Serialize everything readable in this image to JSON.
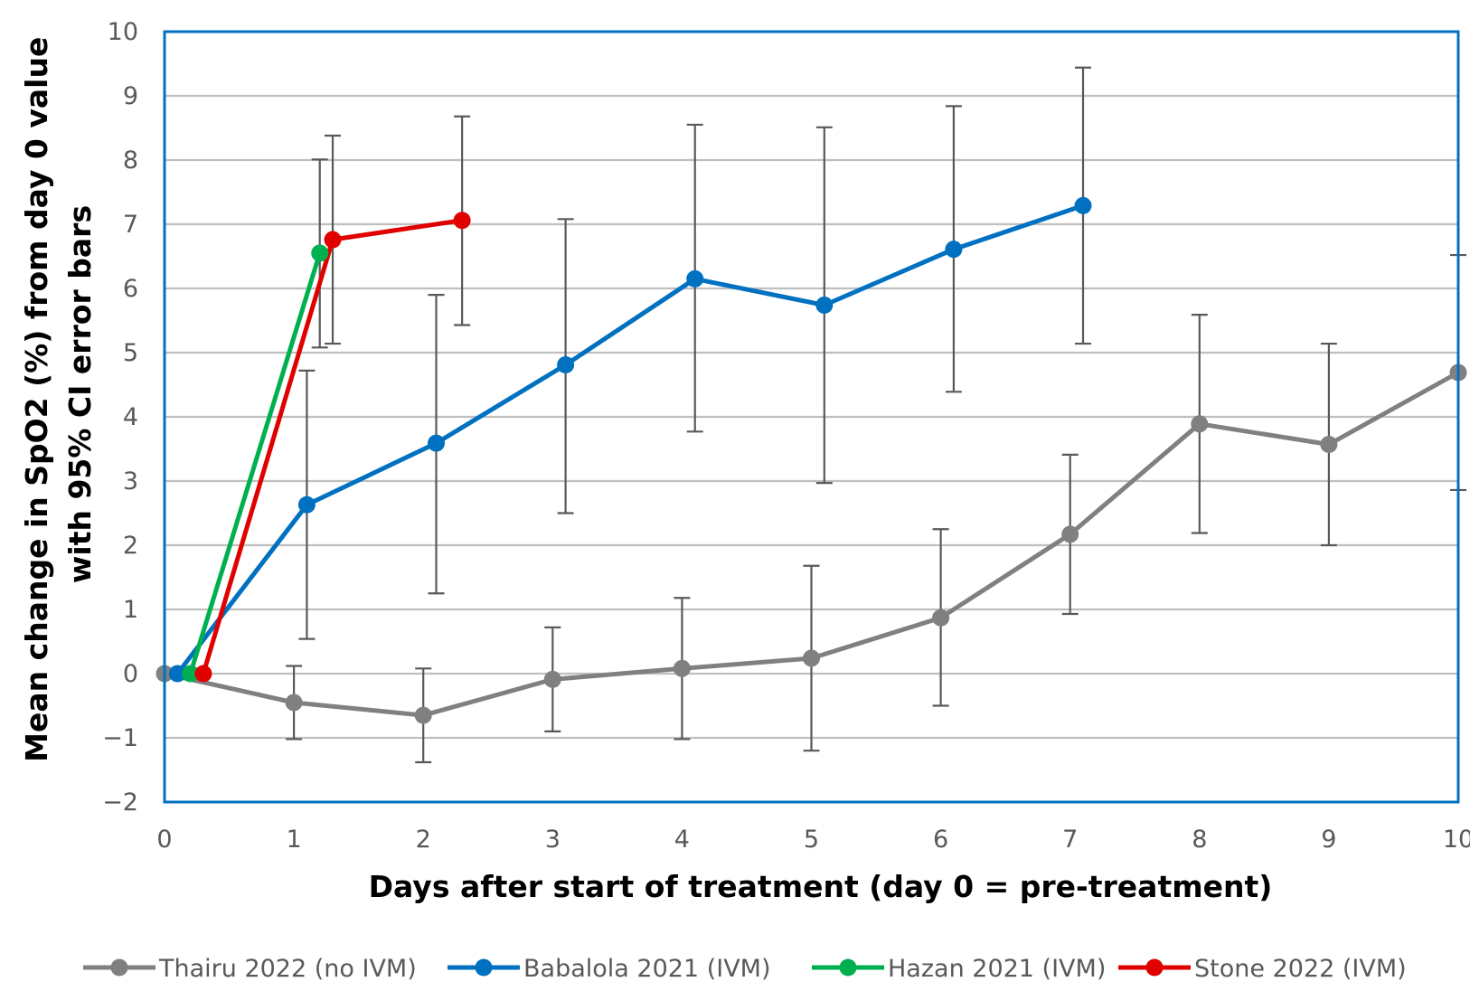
{
  "chart_data": {
    "type": "line",
    "title": "",
    "xlabel": "Days after start of treatment (day 0 = pre-treatment)",
    "ylabel_lines": [
      "Mean change in SpO2 (%) from day 0 value",
      "with 95% CI error bars"
    ],
    "xlim": [
      0,
      10
    ],
    "ylim": [
      -2,
      10
    ],
    "x_ticks": [
      0,
      1,
      2,
      3,
      4,
      5,
      6,
      7,
      8,
      9,
      10
    ],
    "y_ticks": [
      -2,
      -1,
      0,
      1,
      2,
      3,
      4,
      5,
      6,
      7,
      8,
      9,
      10
    ],
    "y_tick_labels": [
      "−2",
      "−1",
      "0",
      "1",
      "2",
      "3",
      "4",
      "5",
      "6",
      "7",
      "8",
      "9",
      "10"
    ],
    "grid": "horizontal",
    "legend_position": "bottom",
    "plot_border_color": "#0070C0",
    "series": [
      {
        "name": "Thairu 2022 (no IVM)",
        "color": "#808080",
        "points": [
          {
            "x": 0,
            "y": 0
          },
          {
            "x": 1,
            "y": -0.45,
            "lo": -1.02,
            "hi": 0.12
          },
          {
            "x": 2,
            "y": -0.65,
            "lo": -1.38,
            "hi": 0.08
          },
          {
            "x": 3,
            "y": -0.09,
            "lo": -0.9,
            "hi": 0.72
          },
          {
            "x": 4,
            "y": 0.08,
            "lo": -1.02,
            "hi": 1.18
          },
          {
            "x": 5,
            "y": 0.24,
            "lo": -1.2,
            "hi": 1.68
          },
          {
            "x": 6,
            "y": 0.87,
            "lo": -0.5,
            "hi": 2.25
          },
          {
            "x": 7,
            "y": 2.17,
            "lo": 0.93,
            "hi": 3.41
          },
          {
            "x": 8,
            "y": 3.89,
            "lo": 2.19,
            "hi": 5.59
          },
          {
            "x": 9,
            "y": 3.57,
            "lo": 2.0,
            "hi": 5.14
          },
          {
            "x": 10,
            "y": 4.69,
            "lo": 2.86,
            "hi": 6.52
          }
        ]
      },
      {
        "name": "Babalola 2021 (IVM)",
        "color": "#0070C0",
        "points": [
          {
            "x": 0.1,
            "y": 0
          },
          {
            "x": 1.1,
            "y": 2.63,
            "lo": 0.54,
            "hi": 4.72
          },
          {
            "x": 2.1,
            "y": 3.59,
            "lo": 1.25,
            "hi": 5.9
          },
          {
            "x": 3.1,
            "y": 4.81,
            "lo": 2.5,
            "hi": 7.08
          },
          {
            "x": 4.1,
            "y": 6.15,
            "lo": 3.77,
            "hi": 8.55
          },
          {
            "x": 5.1,
            "y": 5.74,
            "lo": 2.97,
            "hi": 8.51
          },
          {
            "x": 6.1,
            "y": 6.61,
            "lo": 4.39,
            "hi": 8.84
          },
          {
            "x": 7.1,
            "y": 7.29,
            "lo": 5.14,
            "hi": 9.44
          }
        ]
      },
      {
        "name": "Hazan 2021 (IVM)",
        "color": "#00B050",
        "points": [
          {
            "x": 0.2,
            "y": 0
          },
          {
            "x": 1.2,
            "y": 6.55,
            "lo": 5.08,
            "hi": 8.01
          }
        ]
      },
      {
        "name": "Stone 2022 (IVM)",
        "color": "#E00000",
        "points": [
          {
            "x": 0.3,
            "y": 0
          },
          {
            "x": 1.3,
            "y": 6.76,
            "lo": 5.14,
            "hi": 8.38
          },
          {
            "x": 2.3,
            "y": 7.06,
            "lo": 5.43,
            "hi": 8.68
          }
        ]
      }
    ],
    "error_bar_color": "#595959"
  }
}
